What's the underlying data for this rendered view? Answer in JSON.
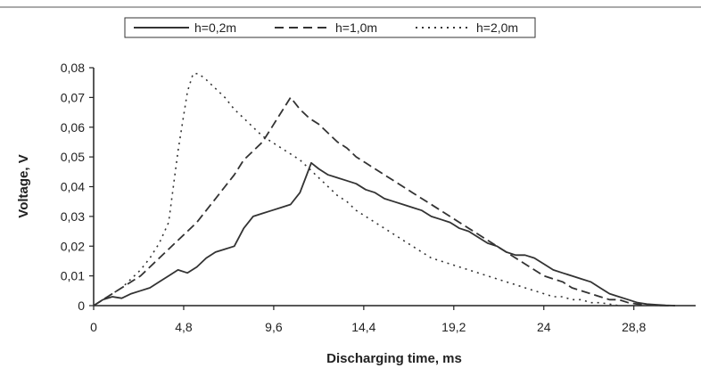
{
  "chart_data": {
    "type": "line",
    "xlabel": "Discharging time, ms",
    "ylabel": "Voltage, V",
    "xlim": [
      0,
      32
    ],
    "ylim": [
      0,
      0.08
    ],
    "x_ticks": [
      0,
      4.8,
      9.6,
      14.4,
      19.2,
      24,
      28.8
    ],
    "x_tick_labels": [
      "0",
      "4,8",
      "9,6",
      "14,4",
      "19,2",
      "24",
      "28,8"
    ],
    "y_ticks": [
      0,
      0.01,
      0.02,
      0.03,
      0.04,
      0.05,
      0.06,
      0.07,
      0.08
    ],
    "y_tick_labels": [
      "0",
      "0,01",
      "0,02",
      "0,03",
      "0,04",
      "0,05",
      "0,06",
      "0,07",
      "0,08"
    ],
    "grid": false,
    "legend_position": "top",
    "series": [
      {
        "name": "h=0,2m",
        "style": "solid",
        "color": "#333333",
        "x": [
          0,
          0.5,
          1,
          1.5,
          2,
          2.5,
          3,
          3.5,
          4,
          4.5,
          5,
          5.5,
          6,
          6.5,
          7,
          7.5,
          8,
          8.5,
          9,
          9.5,
          10,
          10.5,
          11,
          11.3,
          11.6,
          12,
          12.5,
          13,
          13.5,
          14,
          14.5,
          15,
          15.5,
          16,
          16.5,
          17,
          17.5,
          18,
          18.5,
          19,
          19.5,
          20,
          20.5,
          21,
          21.5,
          22,
          22.5,
          23,
          23.5,
          24,
          24.5,
          25,
          25.5,
          26,
          26.5,
          27,
          27.5,
          28,
          28.5,
          29,
          29.5,
          30,
          30.5,
          31
        ],
        "y": [
          0,
          0.002,
          0.003,
          0.0025,
          0.004,
          0.005,
          0.006,
          0.008,
          0.01,
          0.012,
          0.011,
          0.013,
          0.016,
          0.018,
          0.019,
          0.02,
          0.026,
          0.03,
          0.031,
          0.032,
          0.033,
          0.034,
          0.038,
          0.043,
          0.048,
          0.046,
          0.044,
          0.043,
          0.042,
          0.041,
          0.039,
          0.038,
          0.036,
          0.035,
          0.034,
          0.033,
          0.032,
          0.03,
          0.029,
          0.028,
          0.026,
          0.025,
          0.023,
          0.021,
          0.02,
          0.018,
          0.017,
          0.017,
          0.016,
          0.014,
          0.012,
          0.011,
          0.01,
          0.009,
          0.008,
          0.006,
          0.004,
          0.003,
          0.002,
          0.001,
          0.0005,
          0.0003,
          0.0001,
          0
        ]
      },
      {
        "name": "h=1,0m",
        "style": "dashed",
        "color": "#333333",
        "x": [
          0,
          0.5,
          1,
          1.5,
          2,
          2.5,
          3,
          3.5,
          4,
          4.5,
          5,
          5.5,
          6,
          6.5,
          7,
          7.5,
          8,
          8.5,
          9,
          9.5,
          10,
          10.5,
          11,
          11.5,
          12,
          12.5,
          13,
          13.5,
          14,
          14.5,
          15,
          15.5,
          16,
          16.5,
          17,
          17.5,
          18,
          18.5,
          19,
          19.5,
          20,
          20.5,
          21,
          21.5,
          22,
          22.5,
          23,
          23.5,
          24,
          24.5,
          25,
          25.5,
          26,
          26.5,
          27,
          27.5,
          28,
          28.5,
          29,
          29.5,
          30,
          30.5,
          31
        ],
        "y": [
          0,
          0.002,
          0.004,
          0.006,
          0.008,
          0.01,
          0.013,
          0.016,
          0.019,
          0.022,
          0.025,
          0.028,
          0.032,
          0.036,
          0.04,
          0.044,
          0.049,
          0.052,
          0.055,
          0.06,
          0.065,
          0.07,
          0.066,
          0.063,
          0.061,
          0.058,
          0.055,
          0.053,
          0.05,
          0.048,
          0.046,
          0.044,
          0.042,
          0.04,
          0.038,
          0.036,
          0.034,
          0.032,
          0.03,
          0.028,
          0.026,
          0.024,
          0.022,
          0.02,
          0.018,
          0.016,
          0.014,
          0.012,
          0.01,
          0.009,
          0.008,
          0.006,
          0.005,
          0.004,
          0.003,
          0.002,
          0.002,
          0.001,
          0.0005,
          0.0002,
          0.0001,
          0,
          0
        ]
      },
      {
        "name": "h=2,0m",
        "style": "dotted",
        "color": "#333333",
        "x": [
          0,
          0.5,
          1,
          1.5,
          2,
          2.5,
          3,
          3.5,
          4,
          4.5,
          5,
          5.3,
          5.6,
          6,
          6.5,
          7,
          7.5,
          8,
          8.5,
          9,
          9.5,
          10,
          10.5,
          11,
          11.5,
          12,
          12.5,
          13,
          13.5,
          14,
          14.5,
          15,
          15.5,
          16,
          16.5,
          17,
          17.5,
          18,
          18.5,
          19,
          19.5,
          20,
          20.5,
          21,
          21.5,
          22,
          22.5,
          23,
          23.5,
          24,
          24.5,
          25,
          25.5,
          26,
          26.5,
          27,
          27.5,
          28
        ],
        "y": [
          0,
          0.002,
          0.004,
          0.006,
          0.009,
          0.012,
          0.016,
          0.021,
          0.028,
          0.052,
          0.072,
          0.078,
          0.078,
          0.076,
          0.073,
          0.07,
          0.066,
          0.063,
          0.06,
          0.057,
          0.055,
          0.053,
          0.051,
          0.049,
          0.046,
          0.043,
          0.04,
          0.037,
          0.035,
          0.032,
          0.03,
          0.028,
          0.026,
          0.024,
          0.022,
          0.02,
          0.018,
          0.016,
          0.015,
          0.014,
          0.013,
          0.012,
          0.011,
          0.01,
          0.009,
          0.008,
          0.007,
          0.006,
          0.005,
          0.004,
          0.003,
          0.003,
          0.002,
          0.002,
          0.001,
          0.001,
          0.0005,
          0
        ]
      }
    ]
  }
}
